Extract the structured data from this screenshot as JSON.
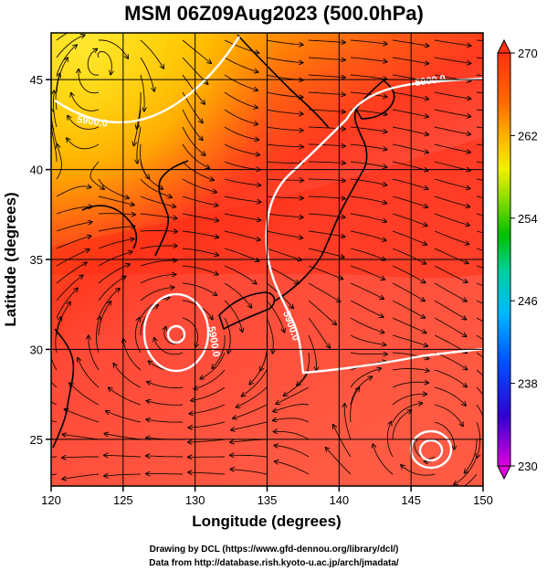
{
  "title": "MSM 06Z09Aug2023 (500.0hPa)",
  "x_axis": {
    "label": "Longitude (degrees)",
    "ticks": [
      120,
      125,
      130,
      135,
      140,
      145,
      150
    ],
    "range": [
      120,
      150
    ]
  },
  "y_axis": {
    "label": "Latitude  (degrees)",
    "ticks": [
      25,
      30,
      35,
      40,
      45
    ],
    "range": [
      22.4,
      47.6
    ]
  },
  "colorbar": {
    "ticks": [
      270,
      262,
      254,
      246,
      238,
      230
    ],
    "range": [
      230,
      270
    ],
    "colors": [
      "#d800d8",
      "#0000c8",
      "#0060ff",
      "#00b0ff",
      "#00c8a0",
      "#00c000",
      "#80e000",
      "#e0e000",
      "#ffa000",
      "#ff6000",
      "#ff2000",
      "#e00000"
    ]
  },
  "contours": [
    {
      "label": "5900.0",
      "value": 5900.0
    },
    {
      "label": "5900.0",
      "value": 5900.0
    },
    {
      "label": "5900.0",
      "value": 5900.0
    },
    {
      "label": "5900.0",
      "value": 5900.0
    }
  ],
  "credits": {
    "line1": "Drawing by DCL (https://www.gfd-dennou.org/library/dcl/)",
    "line2": "Data from http://database.rish.kyoto-u.ac.jp/arch/jmadata/"
  }
}
